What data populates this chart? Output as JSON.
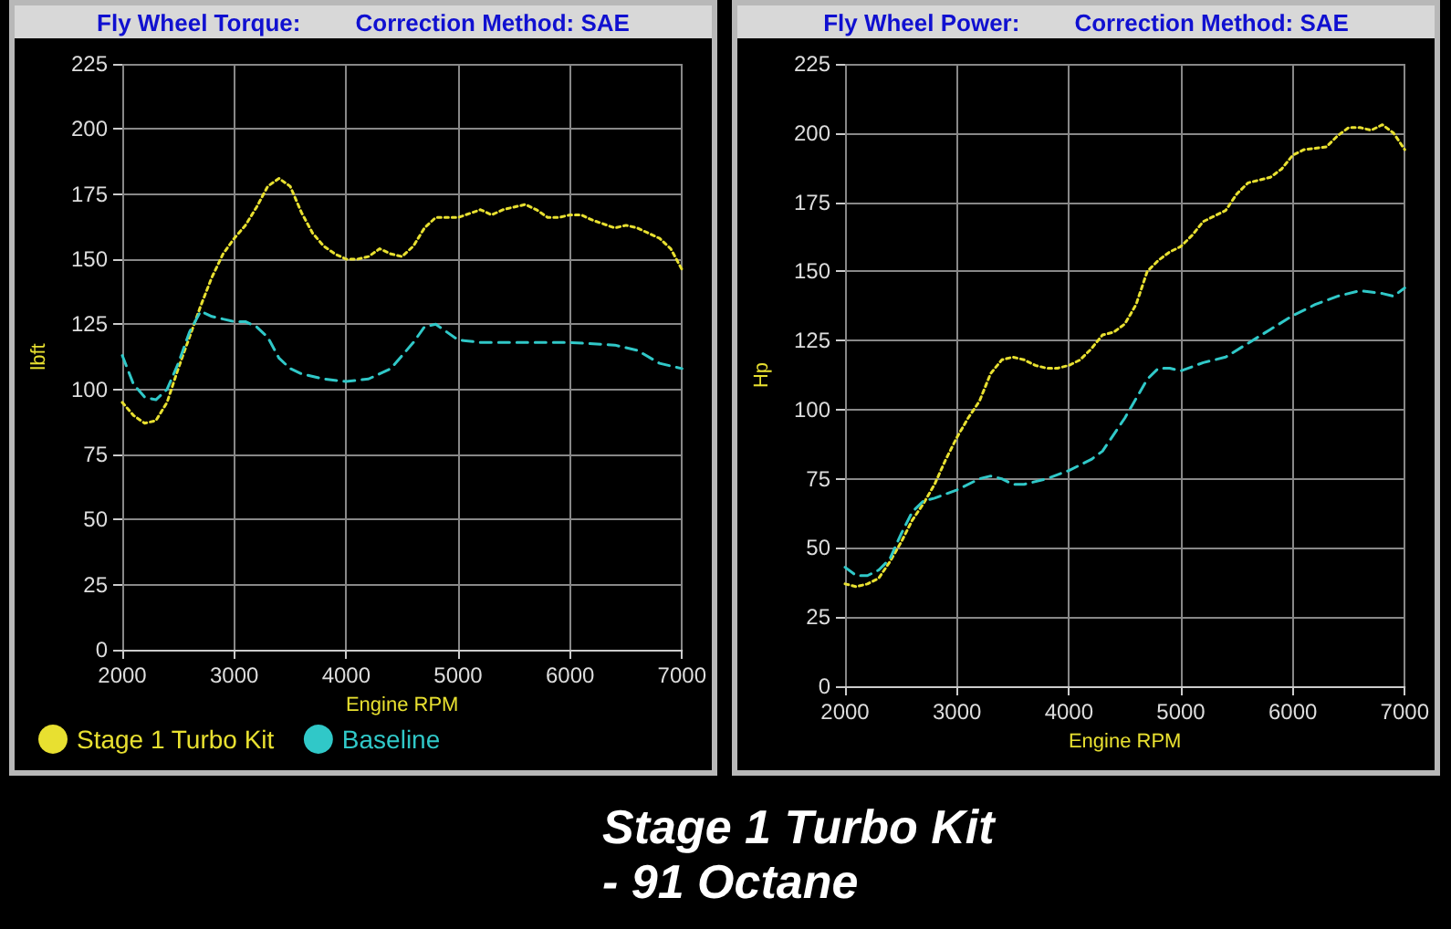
{
  "chart_data": [
    {
      "type": "line",
      "title": "Fly Wheel Torque:",
      "subtitle": "Correction Method: SAE",
      "xlabel": "Engine RPM",
      "ylabel": "lbft",
      "xlim": [
        2000,
        7000
      ],
      "xticks": [
        2000,
        3000,
        4000,
        5000,
        6000,
        7000
      ],
      "ylim": [
        0,
        225
      ],
      "yticks": [
        0,
        25,
        50,
        75,
        100,
        125,
        150,
        175,
        200,
        225
      ],
      "grid": true,
      "legend": "bottom left",
      "marker": "none",
      "annotations": [
        "Stage 1 Turbo Kit",
        "- 91 Octane"
      ],
      "series": [
        {
          "name": "Stage 1 Turbo Kit",
          "color": "#e8e030",
          "line_style": "dotted",
          "x": [
            2000,
            2100,
            2200,
            2300,
            2400,
            2500,
            2600,
            2700,
            2800,
            2900,
            3000,
            3100,
            3200,
            3300,
            3400,
            3500,
            3600,
            3700,
            3800,
            3900,
            4000,
            4100,
            4200,
            4300,
            4400,
            4500,
            4600,
            4700,
            4800,
            4900,
            5000,
            5200,
            5300,
            5400,
            5600,
            5700,
            5800,
            5900,
            6000,
            6100,
            6200,
            6400,
            6500,
            6600,
            6800,
            6900,
            7000
          ],
          "values": [
            95,
            90,
            87,
            88,
            95,
            108,
            120,
            132,
            143,
            152,
            158,
            163,
            170,
            178,
            181,
            178,
            168,
            160,
            155,
            152,
            150,
            150,
            151,
            154,
            152,
            151,
            155,
            162,
            166,
            166,
            166,
            169,
            167,
            169,
            171,
            169,
            166,
            166,
            167,
            167,
            165,
            162,
            163,
            162,
            158,
            154,
            146
          ]
        },
        {
          "name": "Baseline",
          "color": "#30c8c8",
          "line_style": "dashed",
          "x": [
            2000,
            2100,
            2200,
            2300,
            2400,
            2500,
            2600,
            2700,
            2800,
            2900,
            3000,
            3100,
            3200,
            3300,
            3400,
            3500,
            3600,
            3800,
            4000,
            4200,
            4400,
            4600,
            4700,
            4800,
            4900,
            5000,
            5200,
            5600,
            6000,
            6400,
            6600,
            6800,
            7000
          ],
          "values": [
            113,
            102,
            97,
            96,
            100,
            110,
            122,
            130,
            128,
            127,
            126,
            126,
            124,
            120,
            112,
            108,
            106,
            104,
            103,
            104,
            108,
            118,
            124,
            125,
            122,
            119,
            118,
            118,
            118,
            117,
            115,
            110,
            108
          ]
        }
      ]
    },
    {
      "type": "line",
      "title": "Fly Wheel Power:",
      "subtitle": "Correction Method: SAE",
      "xlabel": "Engine RPM",
      "ylabel": "Hp",
      "xlim": [
        2000,
        7000
      ],
      "xticks": [
        2000,
        3000,
        4000,
        5000,
        6000,
        7000
      ],
      "ylim": [
        0,
        225
      ],
      "yticks": [
        0,
        25,
        50,
        75,
        100,
        125,
        150,
        175,
        200,
        225
      ],
      "grid": true,
      "legend": false,
      "marker": "none",
      "series": [
        {
          "color": "#e8e030",
          "line_style": "dotted",
          "x": [
            2000,
            2100,
            2200,
            2300,
            2400,
            2500,
            2600,
            2700,
            2800,
            2900,
            3000,
            3100,
            3200,
            3300,
            3400,
            3500,
            3600,
            3700,
            3800,
            3900,
            4000,
            4100,
            4200,
            4300,
            4400,
            4500,
            4600,
            4700,
            4800,
            4900,
            5000,
            5100,
            5200,
            5300,
            5400,
            5500,
            5600,
            5800,
            5900,
            6000,
            6100,
            6300,
            6400,
            6500,
            6600,
            6700,
            6800,
            6900,
            7000
          ],
          "values": [
            37,
            36,
            37,
            39,
            45,
            52,
            60,
            66,
            73,
            82,
            90,
            97,
            103,
            113,
            118,
            119,
            118,
            116,
            115,
            115,
            116,
            118,
            122,
            127,
            128,
            131,
            138,
            150,
            154,
            157,
            159,
            163,
            168,
            170,
            172,
            178,
            182,
            184,
            187,
            192,
            194,
            195,
            199,
            202,
            202,
            201,
            203,
            200,
            194
          ]
        },
        {
          "color": "#30c8c8",
          "line_style": "dashed",
          "x": [
            2000,
            2100,
            2200,
            2300,
            2400,
            2500,
            2600,
            2700,
            2800,
            3000,
            3200,
            3300,
            3400,
            3500,
            3600,
            3800,
            4000,
            4200,
            4300,
            4500,
            4600,
            4700,
            4800,
            4900,
            5000,
            5200,
            5400,
            5600,
            5800,
            6000,
            6200,
            6400,
            6600,
            6800,
            6900,
            7000
          ],
          "values": [
            43,
            40,
            40,
            42,
            46,
            55,
            63,
            67,
            68,
            71,
            75,
            76,
            75,
            73,
            73,
            75,
            78,
            82,
            85,
            97,
            104,
            111,
            115,
            115,
            114,
            117,
            119,
            124,
            129,
            134,
            138,
            141,
            143,
            142,
            141,
            144
          ]
        }
      ]
    }
  ]
}
